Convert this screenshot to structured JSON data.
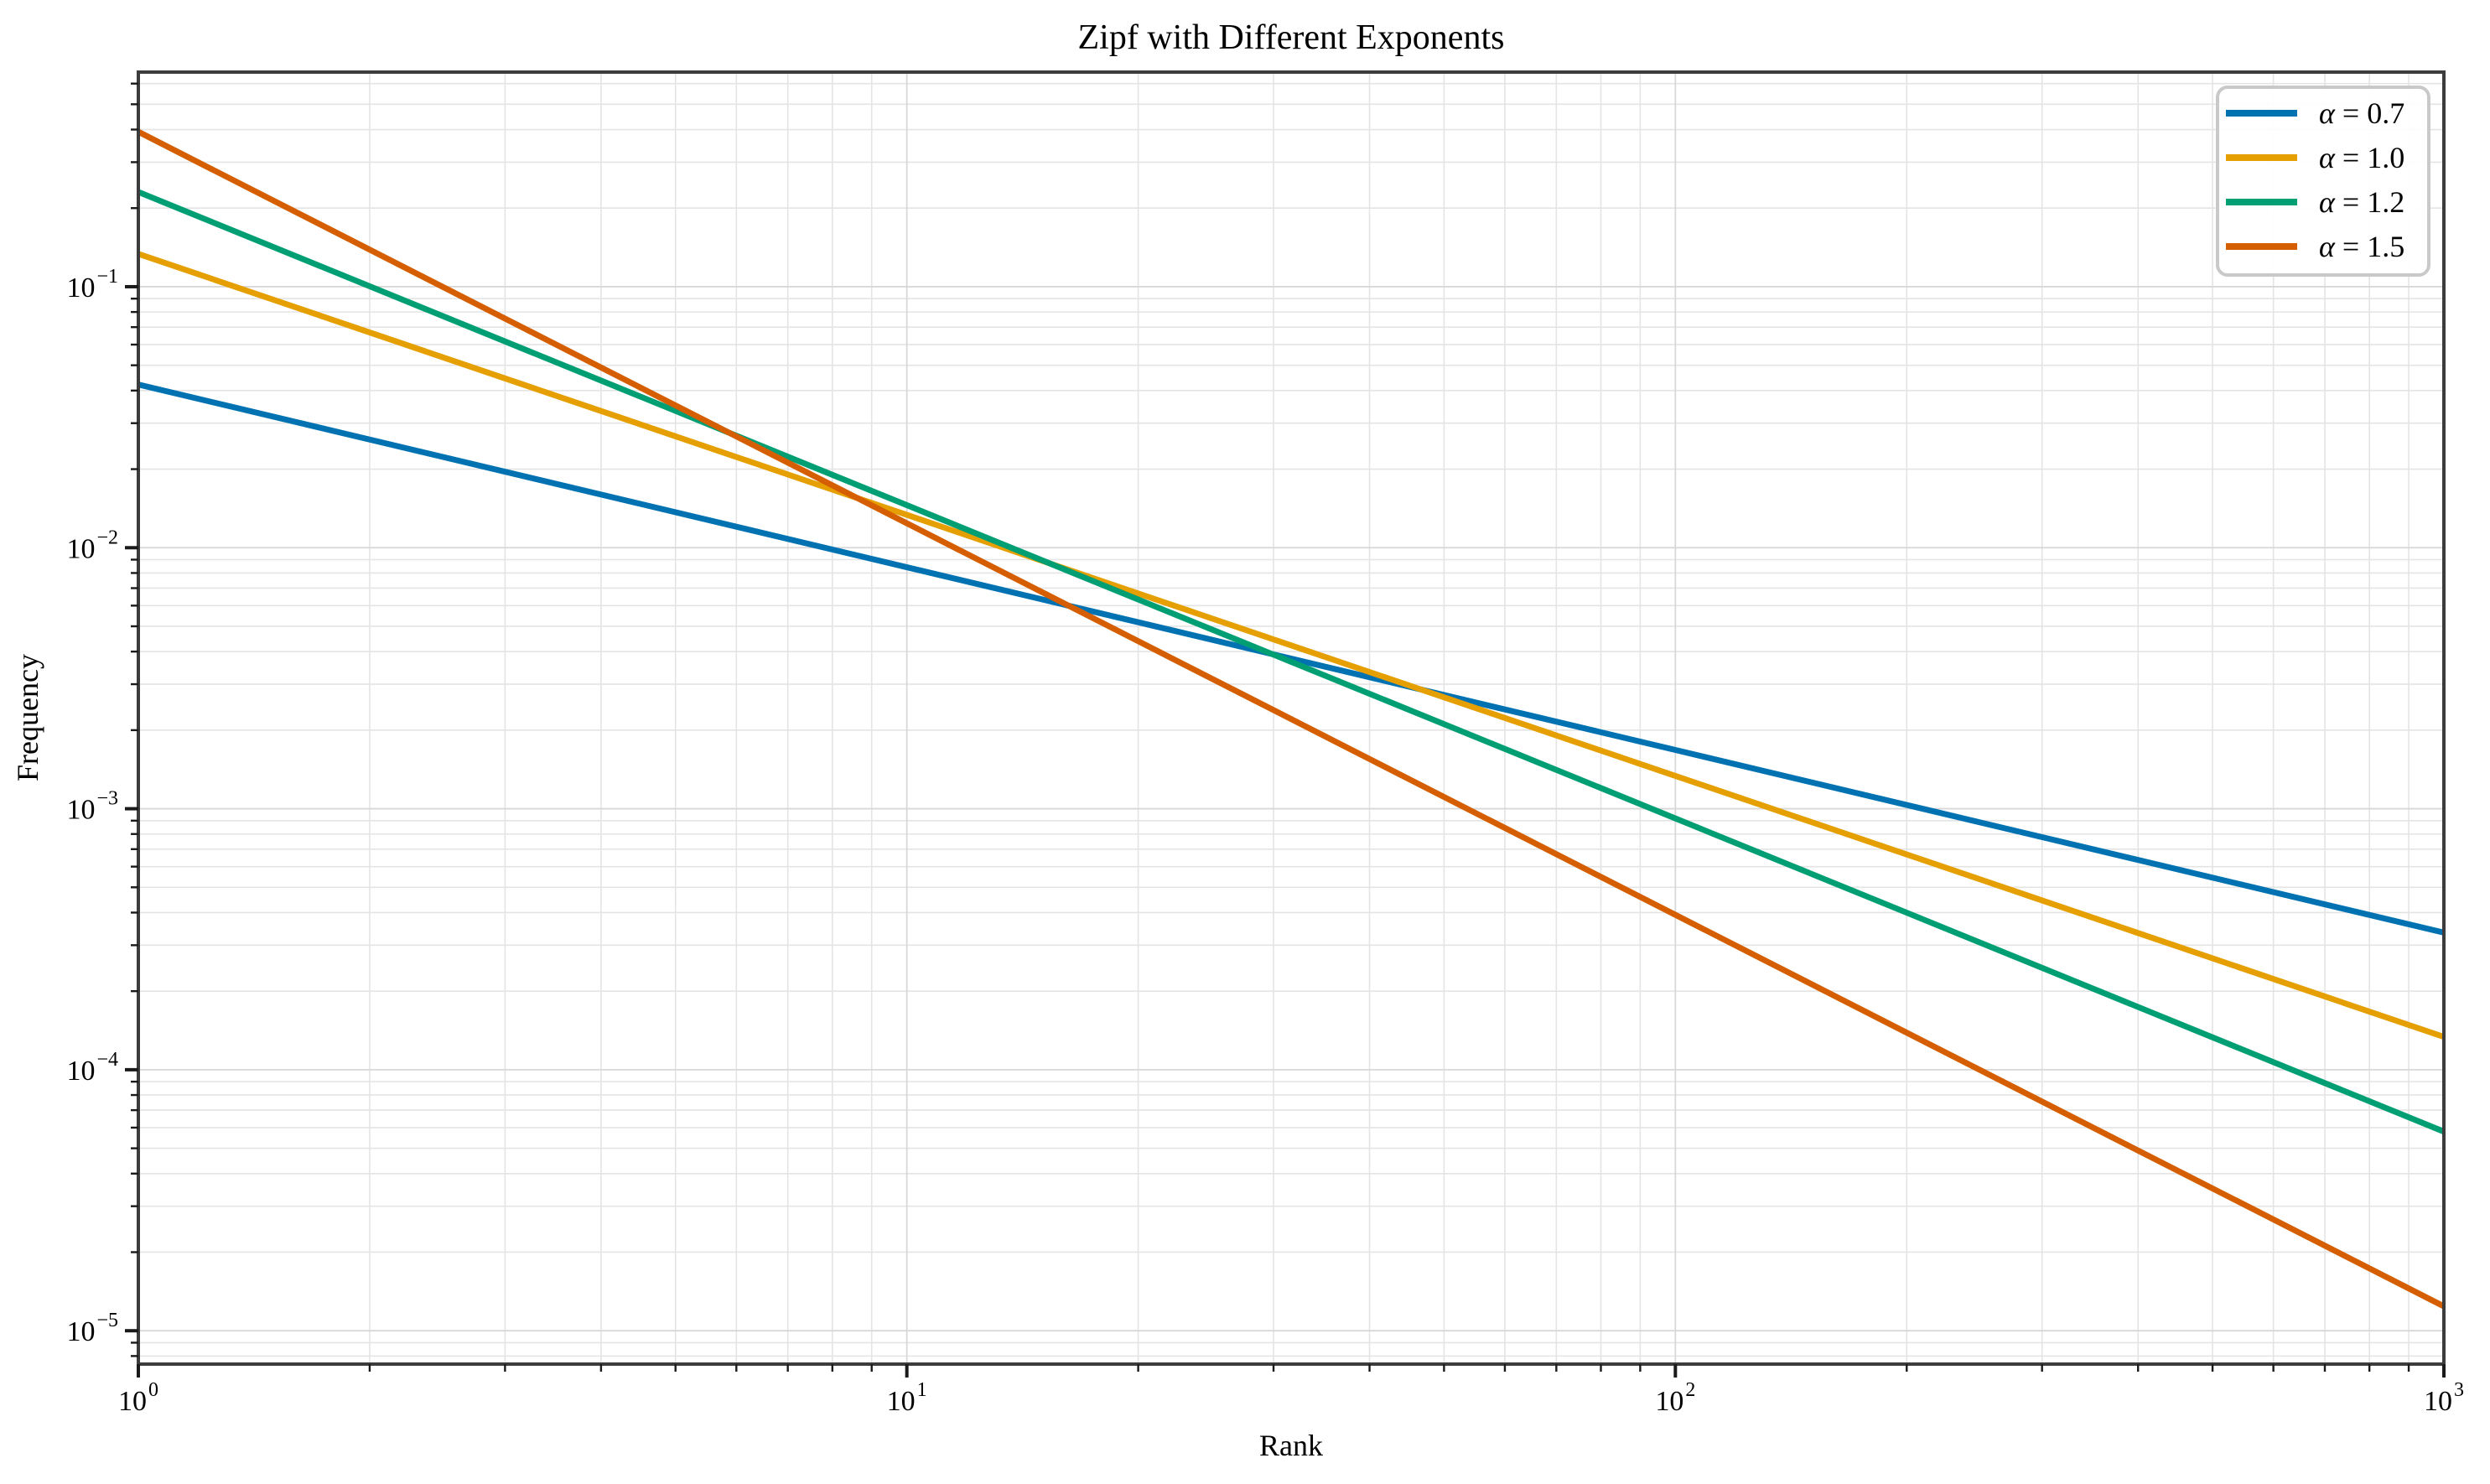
{
  "figure": {
    "background": "#ffffff"
  },
  "style": {
    "spine_color": "#3c3c3c",
    "tick_color": "#1a1a1a",
    "text_color": "#000000",
    "grid_major_color": "#d8d8d8",
    "grid_minor_color": "#e4e4e4",
    "legend_border_color": "#c9c9c9",
    "legend_background": "#ffffff"
  },
  "chart_data": {
    "type": "line",
    "title": "Zipf with Different Exponents",
    "xlabel": "Rank",
    "ylabel": "Frequency",
    "x_scale": "log",
    "y_scale": "log",
    "xlim": [
      1,
      1000
    ],
    "ylim": [
      7.45e-06,
      0.664
    ],
    "x_tick_exponents": [
      0,
      1,
      2,
      3
    ],
    "y_tick_exponents": [
      -1,
      -2,
      -3,
      -4,
      -5
    ],
    "grid": {
      "major": true,
      "minor": true
    },
    "legend": {
      "position": "upper right"
    },
    "series": [
      {
        "name": "α = 0.7",
        "alpha": 0.7,
        "color": "#0072B2",
        "x": [
          1,
          10,
          100,
          1000
        ],
        "y": [
          0.042183,
          0.0084166,
          0.0016794,
          0.00033508
        ]
      },
      {
        "name": "α = 1.0",
        "alpha": 1.0,
        "color": "#E69F00",
        "x": [
          1,
          10,
          100,
          1000
        ],
        "y": [
          0.133592,
          0.0133592,
          0.00133592,
          0.000133592
        ]
      },
      {
        "name": "α = 1.2",
        "alpha": 1.2,
        "color": "#009E73",
        "x": [
          1,
          10,
          100,
          1000
        ],
        "y": [
          0.230616,
          0.014551,
          0.0009181,
          5.7928e-05
        ]
      },
      {
        "name": "α = 1.5",
        "alpha": 1.5,
        "color": "#D55E00",
        "x": [
          1,
          10,
          100,
          1000
        ],
        "y": [
          0.392262,
          0.0124043,
          0.000392262,
          1.24044e-05
        ]
      }
    ]
  }
}
